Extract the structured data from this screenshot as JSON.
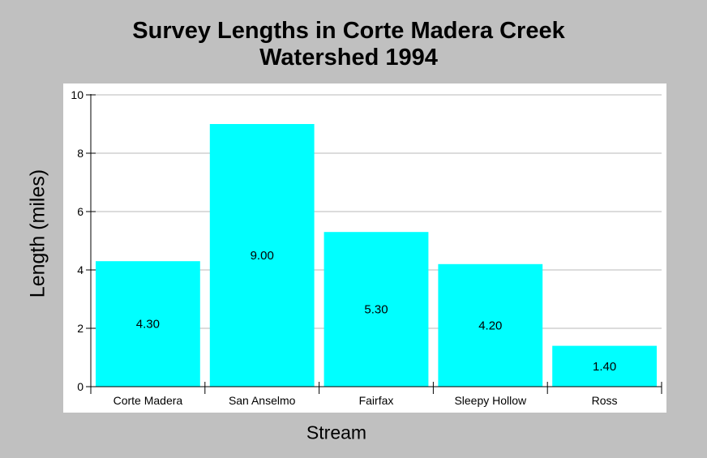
{
  "chart_data": {
    "type": "bar",
    "title_lines": [
      "Survey Lengths in Corte Madera Creek",
      "Watershed 1994"
    ],
    "xlabel": "Stream",
    "ylabel": "Length (miles)",
    "categories": [
      "Corte Madera",
      "San Anselmo",
      "Fairfax",
      "Sleepy Hollow",
      "Ross"
    ],
    "values": [
      4.3,
      9.0,
      5.3,
      4.2,
      1.4
    ],
    "value_labels": [
      "4.30",
      "9.00",
      "5.30",
      "4.20",
      "1.40"
    ],
    "ylim": [
      0,
      10
    ],
    "yticks": [
      0,
      2,
      4,
      6,
      8,
      10
    ],
    "grid": true,
    "legend": "none",
    "bar_color": "#00ffff",
    "background_color": "#c0c0c0",
    "plot_background": "#ffffff"
  }
}
